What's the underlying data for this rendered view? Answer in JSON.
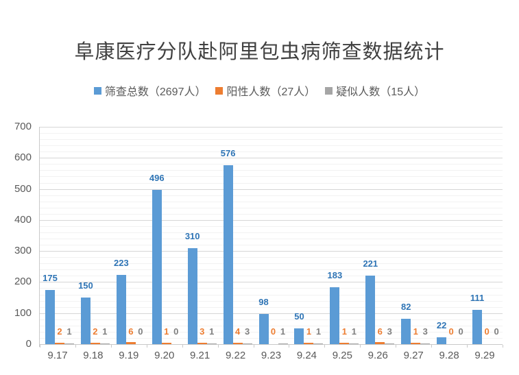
{
  "chart_data": {
    "type": "bar",
    "title": "阜康医疗分队赴阿里包虫病筛查数据统计",
    "categories": [
      "9.17",
      "9.18",
      "9.19",
      "9.20",
      "9.21",
      "9.22",
      "9.23",
      "9.24",
      "9.25",
      "9.26",
      "9.27",
      "9.28",
      "9.29"
    ],
    "series": [
      {
        "name": "筛查总数（2697人）",
        "total_in_name": 2697,
        "color": "#5B9BD5",
        "label_color": "#2E74B5",
        "values": [
          175,
          150,
          223,
          496,
          310,
          576,
          98,
          50,
          183,
          221,
          82,
          22,
          111
        ]
      },
      {
        "name": "阳性人数（27人）",
        "total_in_name": 27,
        "color": "#ED7D31",
        "label_color": "#ED7D31",
        "values": [
          2,
          2,
          6,
          1,
          3,
          4,
          0,
          1,
          1,
          6,
          1,
          0,
          0
        ]
      },
      {
        "name": "疑似人数（15人）",
        "total_in_name": 15,
        "color": "#A5A5A5",
        "label_color": "#7F7F7F",
        "values": [
          1,
          1,
          0,
          0,
          1,
          3,
          1,
          1,
          1,
          3,
          3,
          0,
          0
        ]
      }
    ],
    "xlabel": "",
    "ylabel": "",
    "y_axis": {
      "min": 0,
      "max": 700,
      "major_step": 100,
      "minor_step": 20,
      "tick_labels": [
        "0",
        "100",
        "200",
        "300",
        "400",
        "500",
        "600",
        "700"
      ]
    },
    "grid": true,
    "legend_position": "top",
    "data_labels_visible": true
  },
  "legend": {
    "items": [
      {
        "label": "筛查总数（2697人）",
        "color": "#5B9BD5"
      },
      {
        "label": "阳性人数（27人）",
        "color": "#ED7D31"
      },
      {
        "label": "疑似人数（15人）",
        "color": "#A5A5A5"
      }
    ]
  }
}
